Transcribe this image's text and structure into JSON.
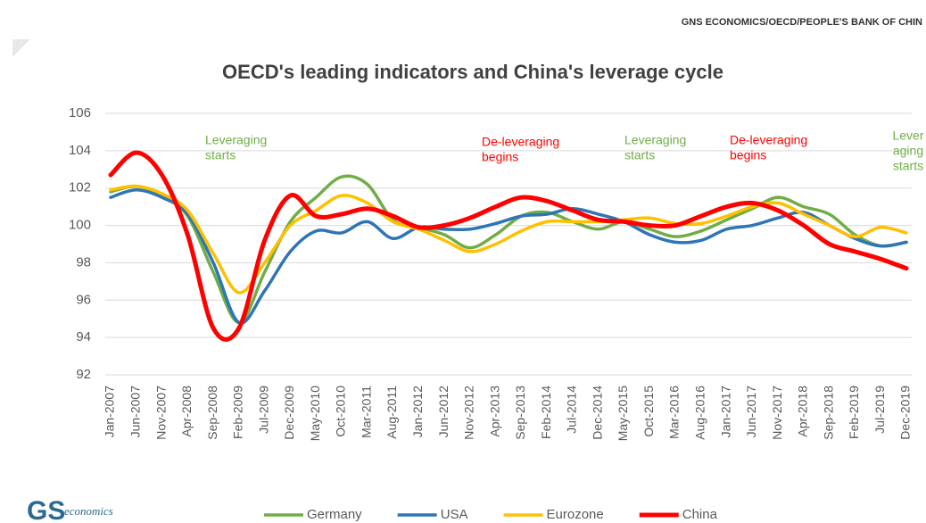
{
  "source": "GNS ECONOMICS/OECD/PEOPLE'S BANK OF CHIN",
  "logo": {
    "mark": "GS",
    "word": "economics"
  },
  "chart_data": {
    "type": "line",
    "title": "OECD's leading indicators and China's leverage cycle",
    "categories": [
      "Jan-2007",
      "Jun-2007",
      "Nov-2007",
      "Apr-2008",
      "Sep-2008",
      "Feb-2009",
      "Jul-2009",
      "Dec-2009",
      "May-2010",
      "Oct-2010",
      "Mar-2011",
      "Aug-2011",
      "Jan-2012",
      "Jun-2012",
      "Nov-2012",
      "Apr-2013",
      "Sep-2013",
      "Feb-2014",
      "Jul-2014",
      "Dec-2014",
      "May-2015",
      "Oct-2015",
      "Mar-2016",
      "Aug-2016",
      "Jan-2017",
      "Jun-2017",
      "Nov-2017",
      "Apr-2018",
      "Sep-2018",
      "Feb-2019",
      "Jul-2019",
      "Dec-2019"
    ],
    "series": [
      {
        "name": "Germany",
        "color": "#70ad47",
        "values": [
          101.8,
          102.1,
          101.6,
          100.5,
          97.5,
          94.8,
          97.5,
          100.2,
          101.5,
          102.6,
          102.2,
          100.3,
          99.9,
          99.5,
          98.8,
          99.5,
          100.5,
          100.7,
          100.2,
          99.8,
          100.2,
          99.8,
          99.4,
          99.7,
          100.3,
          100.9,
          101.5,
          101.0,
          100.6,
          99.5,
          98.9,
          99.1
        ]
      },
      {
        "name": "USA",
        "color": "#2e75b6",
        "values": [
          101.5,
          101.9,
          101.5,
          100.6,
          98.0,
          94.8,
          96.5,
          98.6,
          99.7,
          99.6,
          100.2,
          99.3,
          99.9,
          99.8,
          99.8,
          100.1,
          100.5,
          100.6,
          100.9,
          100.6,
          100.2,
          99.5,
          99.1,
          99.2,
          99.8,
          100.0,
          100.4,
          100.7,
          100.0,
          99.3,
          98.9,
          99.1
        ]
      },
      {
        "name": "Eurozone",
        "color": "#ffc000",
        "values": [
          101.9,
          102.1,
          101.7,
          100.8,
          98.5,
          96.4,
          98.0,
          100.0,
          100.8,
          101.6,
          101.2,
          100.2,
          99.8,
          99.2,
          98.6,
          99.0,
          99.7,
          100.2,
          100.2,
          100.2,
          100.3,
          100.4,
          100.1,
          100.1,
          100.5,
          101.0,
          101.2,
          100.6,
          100.0,
          99.4,
          99.9,
          99.6
        ]
      },
      {
        "name": "China",
        "color": "#ff0000",
        "values": [
          102.7,
          103.9,
          102.7,
          99.5,
          94.5,
          94.5,
          99.2,
          101.6,
          100.5,
          100.6,
          100.9,
          100.5,
          99.9,
          100.0,
          100.4,
          101.0,
          101.5,
          101.3,
          100.8,
          100.3,
          100.2,
          100.0,
          100.0,
          100.5,
          101.0,
          101.2,
          100.8,
          100.0,
          99.0,
          98.6,
          98.2,
          97.7
        ]
      }
    ],
    "ylim": [
      92,
      106
    ],
    "yticks": [
      92,
      94,
      96,
      98,
      100,
      102,
      104,
      106
    ],
    "grid": true,
    "annotations": [
      {
        "lines": [
          "Leveraging",
          "starts"
        ],
        "color": "#70ad47"
      },
      {
        "lines": [
          "De-leveraging",
          "begins"
        ],
        "color": "#ff0000"
      },
      {
        "lines": [
          "Leveraging",
          "starts"
        ],
        "color": "#70ad47"
      },
      {
        "lines": [
          "De-leveraging",
          "begins"
        ],
        "color": "#ff0000"
      },
      {
        "lines": [
          "Lever",
          "aging",
          "starts"
        ],
        "color": "#70ad47"
      }
    ]
  }
}
